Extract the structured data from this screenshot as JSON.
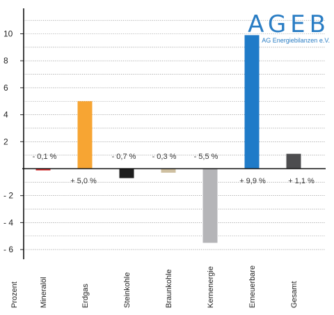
{
  "logo": {
    "title": "AGEB",
    "subtitle": "AG Energiebilanzen e.V."
  },
  "chart_data": {
    "type": "bar",
    "ylabel": "Prozent",
    "ylim": [
      -6.5,
      12
    ],
    "yticks": [
      10,
      8,
      6,
      4,
      2,
      0,
      -2,
      -4,
      -6
    ],
    "ytick_labels": [
      "10",
      "8",
      "6",
      "4",
      "2",
      "",
      "- 2",
      "- 4",
      "- 6"
    ],
    "categories": [
      "Mineralöl",
      "Erdgas",
      "Steinkohle",
      "Braunkohle",
      "Kernenergie",
      "Erneuerbare",
      "Gesamt"
    ],
    "values": [
      -0.1,
      5.0,
      -0.7,
      -0.3,
      -5.5,
      9.9,
      1.1
    ],
    "labels": [
      "- 0,1 %",
      "+ 5,0 %",
      "- 0,7 %",
      "- 0,3 %",
      "- 5,5 %",
      "+ 9,9 %",
      "+ 1,1 %"
    ],
    "colors": [
      "#d32b2b",
      "#f7a533",
      "#1e1e1e",
      "#cfc0a1",
      "#b5b5b8",
      "#1f7bc8",
      "#4d4d4f"
    ],
    "grid": true
  }
}
